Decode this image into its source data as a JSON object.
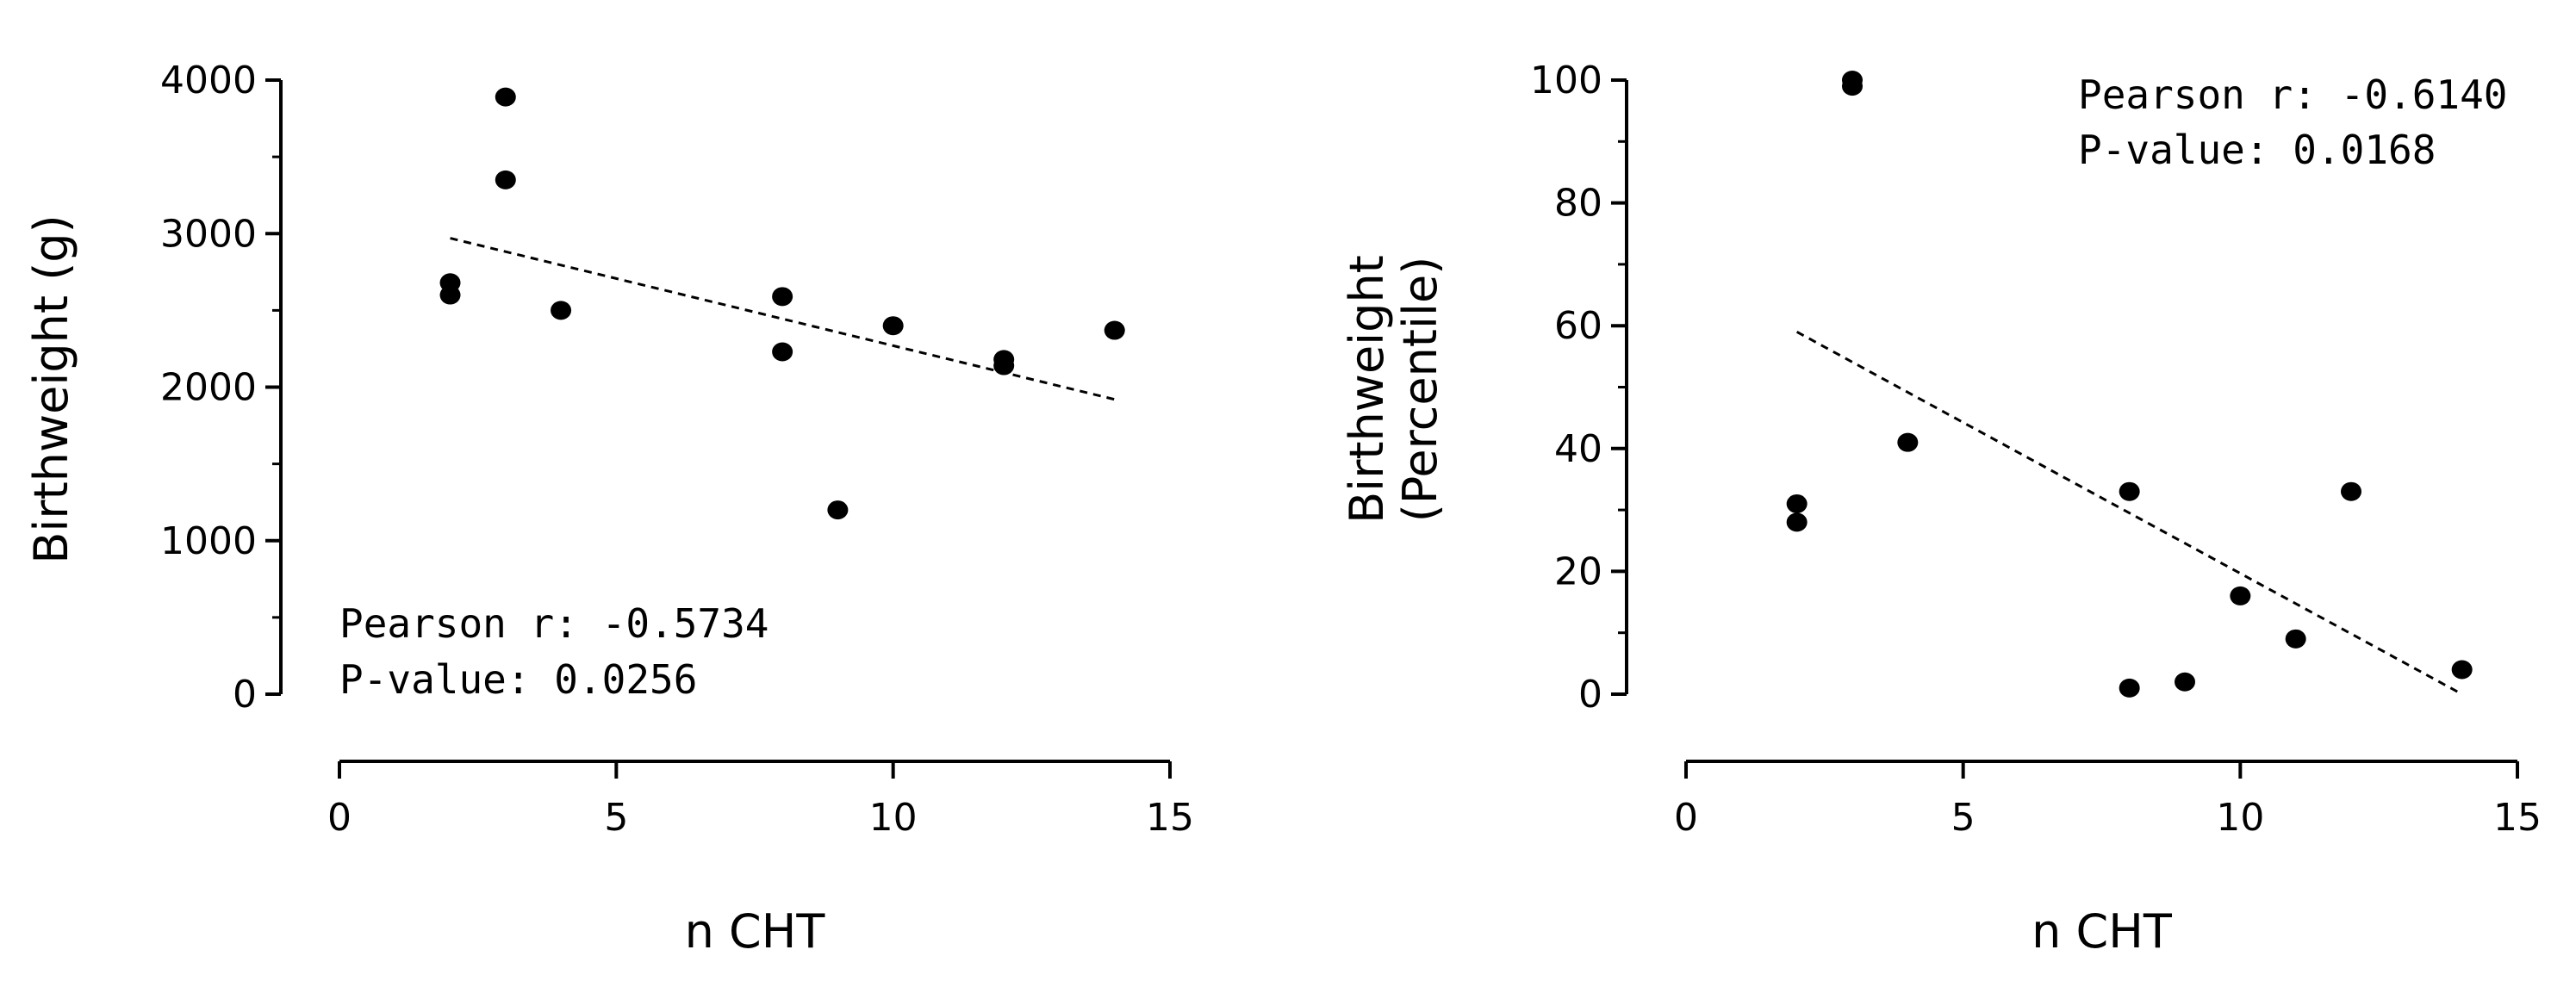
{
  "chart_data": [
    {
      "type": "scatter",
      "xlabel": "n CHT",
      "ylabel": [
        "Birthweight (g)"
      ],
      "xlim": [
        0,
        15
      ],
      "ylim": [
        0,
        4000
      ],
      "xticks": [
        "0",
        "5",
        "10",
        "15"
      ],
      "yticks": [
        "0",
        "1000",
        "2000",
        "3000",
        "4000"
      ],
      "points": [
        {
          "x": 2,
          "y": 2680
        },
        {
          "x": 2,
          "y": 2600
        },
        {
          "x": 3,
          "y": 3890
        },
        {
          "x": 3,
          "y": 3350
        },
        {
          "x": 4,
          "y": 2500
        },
        {
          "x": 8,
          "y": 2590
        },
        {
          "x": 8,
          "y": 2230
        },
        {
          "x": 9,
          "y": 1200
        },
        {
          "x": 10,
          "y": 2400
        },
        {
          "x": 12,
          "y": 2180
        },
        {
          "x": 12,
          "y": 2140
        },
        {
          "x": 14,
          "y": 2370
        }
      ],
      "trendline": {
        "x": [
          2,
          14
        ],
        "y": [
          2970,
          1920
        ],
        "style": "dashed"
      },
      "annotations": [
        "Pearson r: -0.5734",
        "P-value: 0.0256"
      ]
    },
    {
      "type": "scatter",
      "xlabel": "n CHT",
      "ylabel": [
        "Birthweight",
        "(Percentile)"
      ],
      "xlim": [
        0,
        15
      ],
      "ylim": [
        0,
        100
      ],
      "xticks": [
        "0",
        "5",
        "10",
        "15"
      ],
      "yticks": [
        "0",
        "20",
        "40",
        "60",
        "80",
        "100"
      ],
      "points": [
        {
          "x": 2,
          "y": 31
        },
        {
          "x": 2,
          "y": 28
        },
        {
          "x": 3,
          "y": 100
        },
        {
          "x": 3,
          "y": 99
        },
        {
          "x": 4,
          "y": 41
        },
        {
          "x": 8,
          "y": 33
        },
        {
          "x": 8,
          "y": 1
        },
        {
          "x": 9,
          "y": 2
        },
        {
          "x": 10,
          "y": 16
        },
        {
          "x": 11,
          "y": 9
        },
        {
          "x": 12,
          "y": 33
        },
        {
          "x": 14,
          "y": 4
        }
      ],
      "trendline": {
        "x": [
          2,
          14
        ],
        "y": [
          59,
          0
        ],
        "style": "dashed"
      },
      "annotations": [
        "Pearson r: -0.6140",
        "P-value: 0.0168"
      ]
    }
  ]
}
